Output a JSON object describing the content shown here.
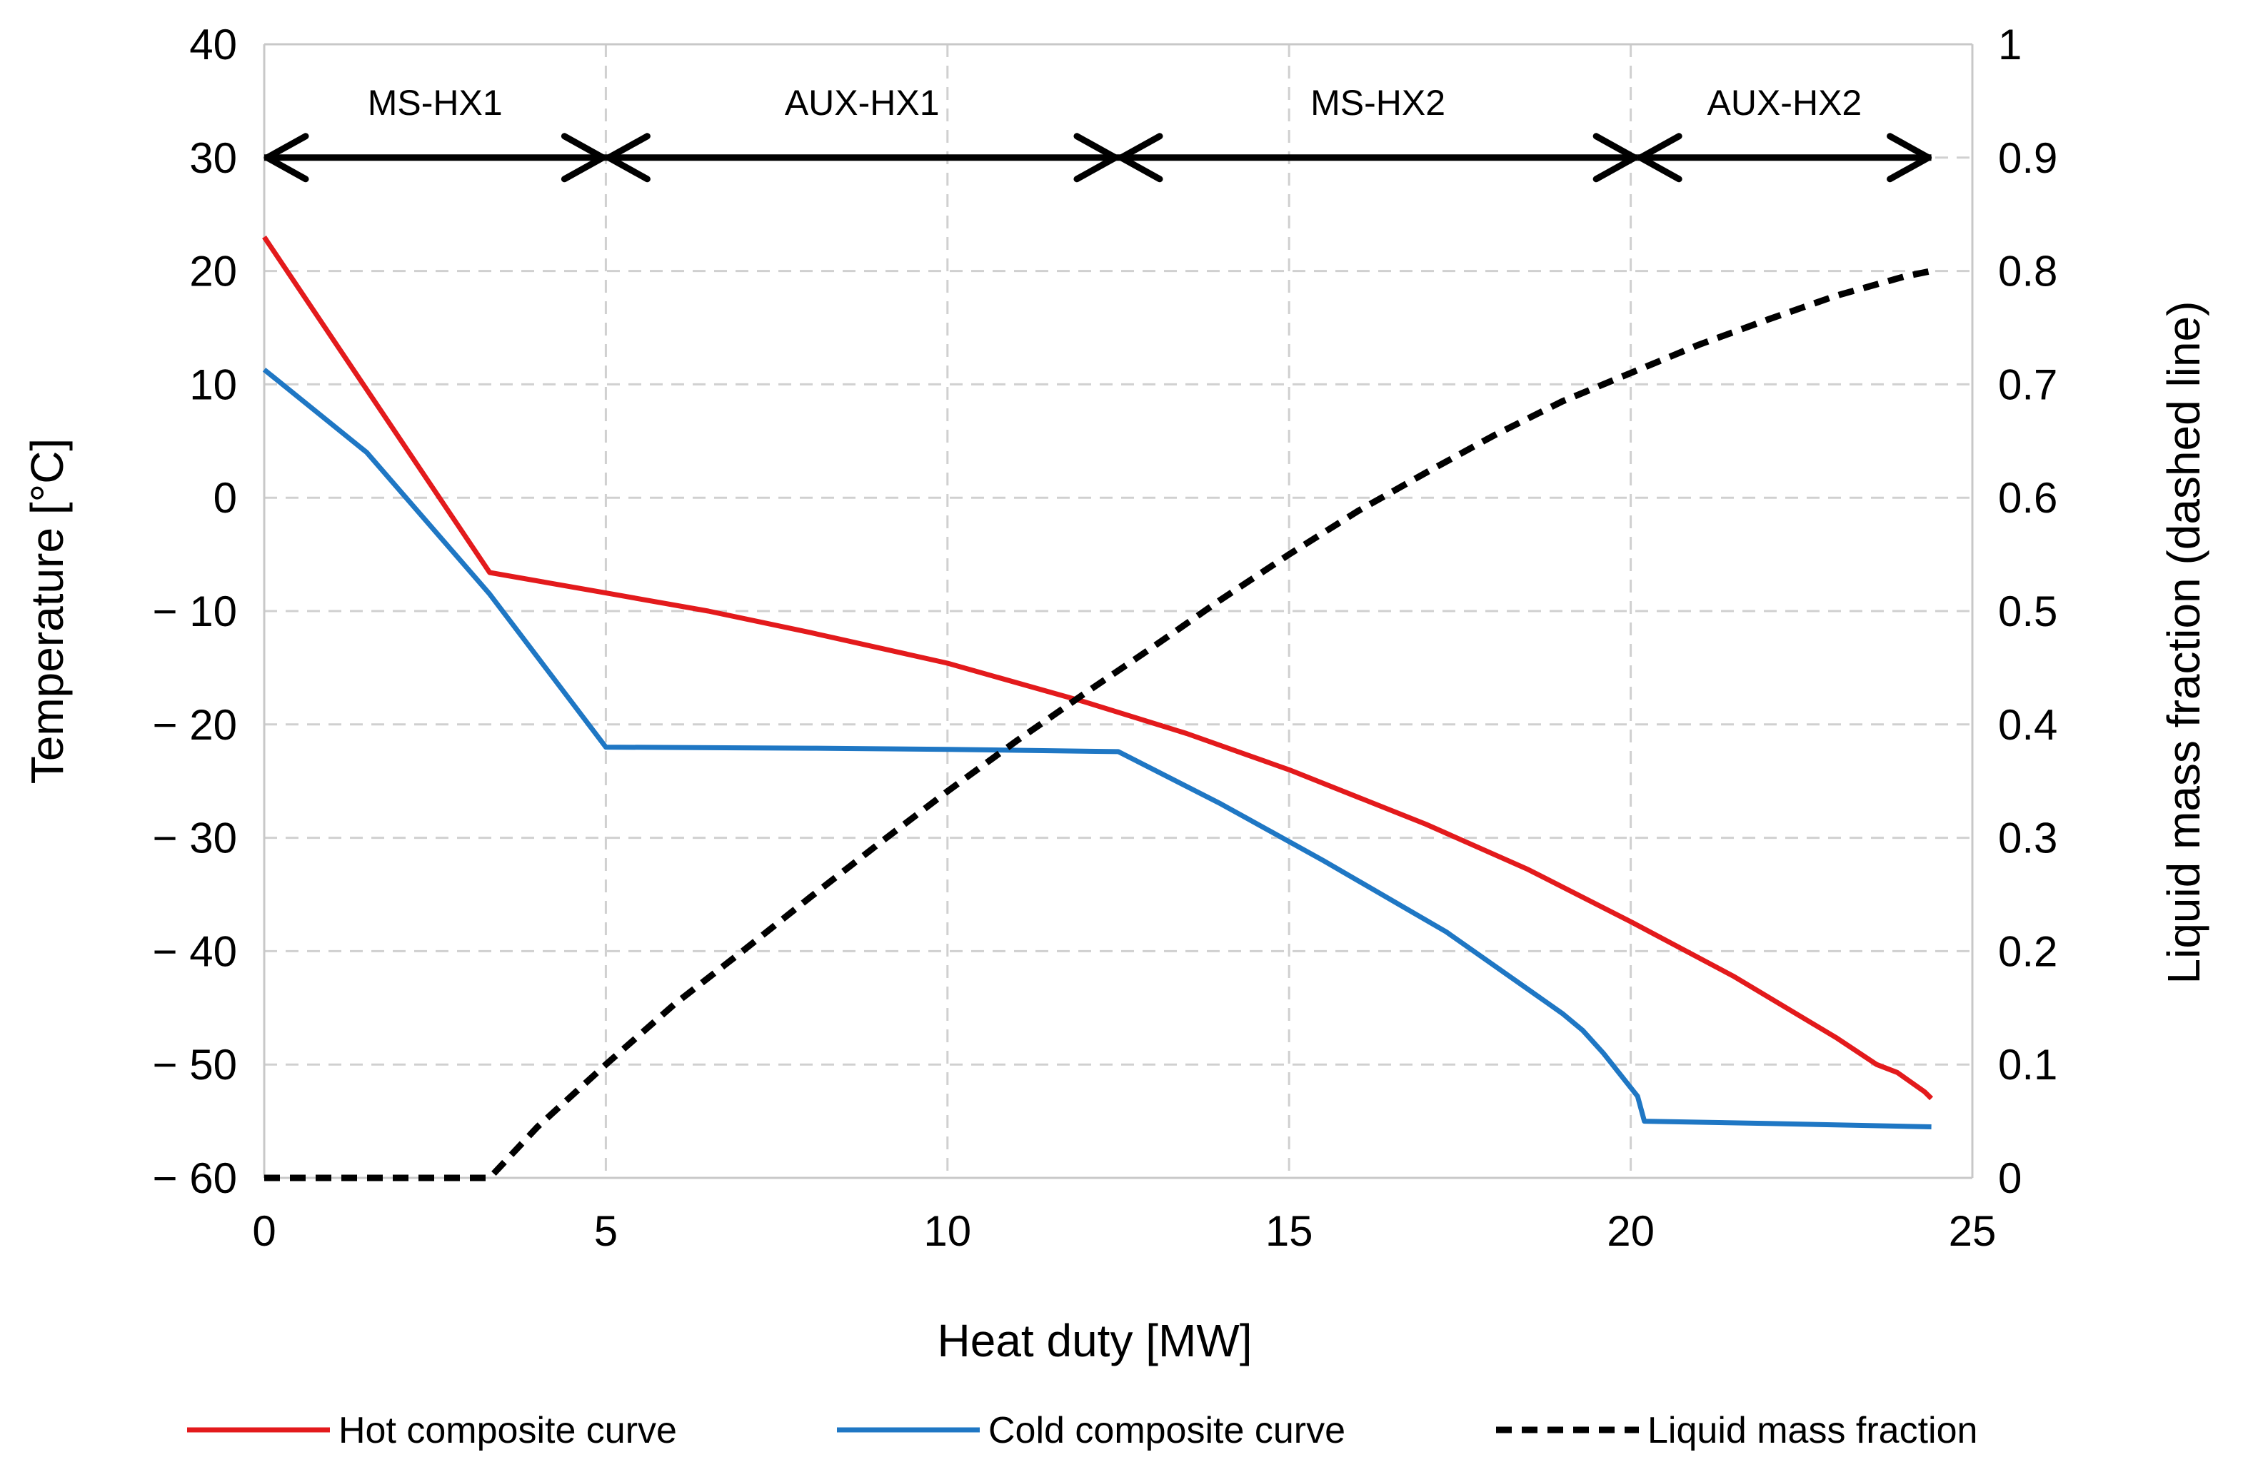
{
  "chart_data": {
    "type": "line",
    "xlabel": "Heat duty [MW]",
    "ylabel": "Temperature [°C]",
    "y2label": "Liquid mass fraction (dashed line)",
    "xlim": [
      0,
      25
    ],
    "ylim": [
      -60,
      40
    ],
    "y2lim": [
      0,
      1
    ],
    "x_ticks": [
      0,
      5,
      10,
      15,
      20,
      25
    ],
    "y_ticks": [
      -60,
      -50,
      -40,
      -30,
      -20,
      -10,
      0,
      10,
      20,
      30,
      40
    ],
    "y_tick_labels": [
      "− 60",
      "− 50",
      "− 40",
      "− 30",
      "− 20",
      "− 10",
      "0",
      "10",
      "20",
      "30",
      "40"
    ],
    "y2_ticks": [
      0,
      0.1,
      0.2,
      0.3,
      0.4,
      0.5,
      0.6,
      0.7,
      0.8,
      0.9,
      1
    ],
    "y2_tick_labels": [
      "0",
      "0.1",
      "0.2",
      "0.3",
      "0.4",
      "0.5",
      "0.6",
      "0.7",
      "0.8",
      "0.9",
      "1"
    ],
    "grid": true,
    "legend_position": "bottom",
    "series": [
      {
        "name": "Hot composite curve",
        "axis": "left",
        "color": "#e31a1c",
        "dash": "solid",
        "points": [
          [
            0,
            23
          ],
          [
            3.3,
            -6.6
          ],
          [
            5,
            -8.4
          ],
          [
            6.5,
            -10
          ],
          [
            8,
            -11.9
          ],
          [
            10,
            -14.6
          ],
          [
            12,
            -18
          ],
          [
            13.5,
            -20.8
          ],
          [
            15,
            -24
          ],
          [
            17,
            -28.8
          ],
          [
            18.5,
            -32.8
          ],
          [
            20,
            -37.4
          ],
          [
            21.5,
            -42.2
          ],
          [
            23,
            -47.6
          ],
          [
            23.6,
            -50
          ],
          [
            23.9,
            -50.7
          ],
          [
            24.3,
            -52.4
          ],
          [
            24.4,
            -53
          ]
        ]
      },
      {
        "name": "Cold composite curve",
        "axis": "left",
        "color": "#1f77c4",
        "dash": "solid",
        "points": [
          [
            0,
            11.3
          ],
          [
            1.5,
            4
          ],
          [
            3.3,
            -8.5
          ],
          [
            5,
            -22
          ],
          [
            8,
            -22.1
          ],
          [
            10,
            -22.2
          ],
          [
            12.5,
            -22.4
          ],
          [
            14,
            -27
          ],
          [
            15.5,
            -32
          ],
          [
            17.3,
            -38.3
          ],
          [
            19,
            -45.5
          ],
          [
            19.3,
            -47
          ],
          [
            19.6,
            -49
          ],
          [
            20.1,
            -52.8
          ],
          [
            20.2,
            -55
          ],
          [
            22,
            -55.2
          ],
          [
            24.4,
            -55.5
          ]
        ]
      },
      {
        "name": "Liquid mass fraction",
        "axis": "right",
        "color": "#000000",
        "dash": "dashed",
        "points": [
          [
            0,
            0
          ],
          [
            3.3,
            0
          ],
          [
            4,
            0.045
          ],
          [
            5,
            0.1
          ],
          [
            6,
            0.153
          ],
          [
            7,
            0.2
          ],
          [
            8,
            0.248
          ],
          [
            9,
            0.295
          ],
          [
            10,
            0.341
          ],
          [
            11,
            0.385
          ],
          [
            12,
            0.427
          ],
          [
            13,
            0.468
          ],
          [
            14,
            0.51
          ],
          [
            15,
            0.55
          ],
          [
            16,
            0.588
          ],
          [
            17,
            0.622
          ],
          [
            18,
            0.655
          ],
          [
            19,
            0.685
          ],
          [
            20,
            0.71
          ],
          [
            21,
            0.735
          ],
          [
            22,
            0.757
          ],
          [
            23,
            0.778
          ],
          [
            24,
            0.795
          ],
          [
            24.4,
            0.8
          ]
        ]
      }
    ],
    "zones": [
      {
        "label": "MS-HX1",
        "from": 0,
        "to": 5
      },
      {
        "label": "AUX-HX1",
        "from": 5,
        "to": 12.5
      },
      {
        "label": "MS-HX2",
        "from": 12.5,
        "to": 20.1
      },
      {
        "label": "AUX-HX2",
        "from": 20.1,
        "to": 24.4
      }
    ],
    "zone_arrow_y": 30
  }
}
